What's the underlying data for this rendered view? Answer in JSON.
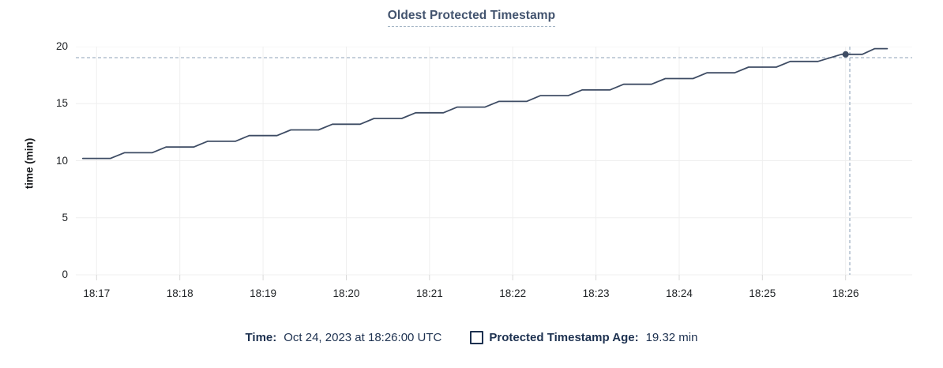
{
  "title": "Oldest Protected Timestamp",
  "colors": {
    "series_line": "#3e4c64",
    "title_text": "#42536e",
    "legend_text": "#1d3150",
    "crosshair": "#a3b4c5",
    "grid": "#efefef",
    "tick_mark": "#d9d9d9"
  },
  "legend": {
    "time_label": "Time:",
    "time_value": "Oct 24, 2023 at 18:26:00 UTC",
    "series_label": "Protected Timestamp Age:",
    "series_value": "19.32 min"
  },
  "chart_data": {
    "type": "line",
    "title": "Oldest Protected Timestamp",
    "xlabel": "",
    "ylabel": "time (min)",
    "ylim": [
      0,
      20
    ],
    "y_ticks": [
      0,
      5,
      10,
      15,
      20
    ],
    "grid": true,
    "legend_position": "bottom",
    "x_domain_seconds_rel_1817": [
      -15,
      588
    ],
    "x_ticks": [
      {
        "label": "18:17",
        "t": 0
      },
      {
        "label": "18:18",
        "t": 60
      },
      {
        "label": "18:19",
        "t": 120
      },
      {
        "label": "18:20",
        "t": 180
      },
      {
        "label": "18:21",
        "t": 240
      },
      {
        "label": "18:22",
        "t": 300
      },
      {
        "label": "18:23",
        "t": 360
      },
      {
        "label": "18:24",
        "t": 420
      },
      {
        "label": "18:25",
        "t": 480
      },
      {
        "label": "18:26",
        "t": 540
      }
    ],
    "series": [
      {
        "name": "Protected Timestamp Age",
        "unit": "min",
        "points": [
          [
            -10,
            10.2
          ],
          [
            10,
            10.2
          ],
          [
            20,
            10.7
          ],
          [
            40,
            10.7
          ],
          [
            50,
            11.2
          ],
          [
            70,
            11.2
          ],
          [
            80,
            11.7
          ],
          [
            100,
            11.7
          ],
          [
            110,
            12.2
          ],
          [
            130,
            12.2
          ],
          [
            140,
            12.7
          ],
          [
            160,
            12.7
          ],
          [
            170,
            13.2
          ],
          [
            190,
            13.2
          ],
          [
            200,
            13.7
          ],
          [
            220,
            13.7
          ],
          [
            230,
            14.2
          ],
          [
            250,
            14.2
          ],
          [
            260,
            14.7
          ],
          [
            280,
            14.7
          ],
          [
            290,
            15.2
          ],
          [
            310,
            15.2
          ],
          [
            320,
            15.7
          ],
          [
            340,
            15.7
          ],
          [
            350,
            16.2
          ],
          [
            370,
            16.2
          ],
          [
            380,
            16.7
          ],
          [
            400,
            16.7
          ],
          [
            410,
            17.2
          ],
          [
            430,
            17.2
          ],
          [
            440,
            17.7
          ],
          [
            460,
            17.7
          ],
          [
            470,
            18.2
          ],
          [
            490,
            18.2
          ],
          [
            500,
            18.7
          ],
          [
            520,
            18.7
          ],
          [
            537,
            19.32
          ],
          [
            552,
            19.32
          ],
          [
            561,
            19.82
          ],
          [
            570,
            19.82
          ]
        ]
      }
    ],
    "hover": {
      "crosshair_t": 543,
      "crosshair_value": 19.03,
      "highlighted_point": {
        "t": 540,
        "value": 19.32
      }
    }
  }
}
